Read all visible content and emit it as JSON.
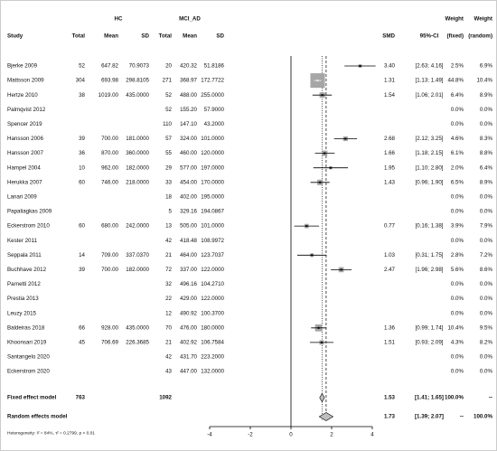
{
  "chart_data": {
    "type": "forest",
    "header": {
      "group1": "HC",
      "group2": "MCI_AD",
      "weight1": "Weight",
      "weight2": "Weight",
      "columns": [
        "Study",
        "Total",
        "Mean",
        "SD",
        "Total",
        "Mean",
        "SD",
        "SMD",
        "95%-CI",
        "(fixed)",
        "(random)"
      ]
    },
    "xlim": [
      -4,
      4
    ],
    "xticks": [
      -4,
      -2,
      0,
      2,
      4
    ],
    "box_color": "#a6a6a6",
    "diamond_color": "#bfbfbf",
    "rows": [
      {
        "study": "Bjerke 2009",
        "hc": [
          "52",
          "647.82",
          "70.9073"
        ],
        "mci": [
          "20",
          "420.32",
          "51.8186"
        ],
        "smd": {
          "value": 3.4,
          "label": "3.40"
        },
        "ci": {
          "value": [
            2.63,
            4.16
          ],
          "label": "[2.63; 4.16]"
        },
        "w_fixed": {
          "value": 2.5,
          "label": "2.5%"
        },
        "w_random": "6.9%"
      },
      {
        "study": "Mattsson 2009",
        "hc": [
          "304",
          "693.98",
          "298.8105"
        ],
        "mci": [
          "271",
          "368.97",
          "172.7722"
        ],
        "smd": {
          "value": 1.31,
          "label": "1.31"
        },
        "ci": {
          "value": [
            1.13,
            1.49
          ],
          "label": "[1.13; 1.49]"
        },
        "w_fixed": {
          "value": 44.8,
          "label": "44.8%"
        },
        "w_random": "10.4%"
      },
      {
        "study": "Hertze 2010",
        "hc": [
          "38",
          "1019.00",
          "435.0000"
        ],
        "mci": [
          "52",
          "488.00",
          "255.0000"
        ],
        "smd": {
          "value": 1.54,
          "label": "1.54"
        },
        "ci": {
          "value": [
            1.06,
            2.01
          ],
          "label": "[1.06; 2.01]"
        },
        "w_fixed": {
          "value": 6.4,
          "label": "6.4%"
        },
        "w_random": "8.9%"
      },
      {
        "study": "Palmqvist 2012",
        "mci": [
          "52",
          "155.20",
          "57.9000"
        ],
        "w_fixed": {
          "value": 0,
          "label": "0.0%"
        },
        "w_random": "0.0%"
      },
      {
        "study": "Spencer 2019",
        "mci": [
          "110",
          "147.10",
          "43.2000"
        ],
        "w_fixed": {
          "value": 0,
          "label": "0.0%"
        },
        "w_random": "0.0%"
      },
      {
        "study": "Hansson 2006",
        "hc": [
          "39",
          "700.00",
          "181.0000"
        ],
        "mci": [
          "57",
          "324.00",
          "101.0000"
        ],
        "smd": {
          "value": 2.68,
          "label": "2.68"
        },
        "ci": {
          "value": [
            2.12,
            3.25
          ],
          "label": "[2.12; 3.25]"
        },
        "w_fixed": {
          "value": 4.6,
          "label": "4.6%"
        },
        "w_random": "8.3%"
      },
      {
        "study": "Hansson 2007",
        "hc": [
          "36",
          "870.00",
          "360.0000"
        ],
        "mci": [
          "55",
          "460.00",
          "120.0000"
        ],
        "smd": {
          "value": 1.66,
          "label": "1.66"
        },
        "ci": {
          "value": [
            1.18,
            2.15
          ],
          "label": "[1.18; 2.15]"
        },
        "w_fixed": {
          "value": 6.1,
          "label": "6.1%"
        },
        "w_random": "8.8%"
      },
      {
        "study": "Hampel 2004",
        "hc": [
          "10",
          "962.00",
          "182.0000"
        ],
        "mci": [
          "29",
          "577.00",
          "197.0000"
        ],
        "smd": {
          "value": 1.95,
          "label": "1.95"
        },
        "ci": {
          "value": [
            1.1,
            2.8
          ],
          "label": "[1.10; 2.80]"
        },
        "w_fixed": {
          "value": 2,
          "label": "2.0%"
        },
        "w_random": "6.4%"
      },
      {
        "study": "Herukka 2007",
        "hc": [
          "60",
          "746.00",
          "218.0000"
        ],
        "mci": [
          "33",
          "454.00",
          "170.0000"
        ],
        "smd": {
          "value": 1.43,
          "label": "1.43"
        },
        "ci": {
          "value": [
            0.96,
            1.9
          ],
          "label": "[0.96; 1.90]"
        },
        "w_fixed": {
          "value": 6.5,
          "label": "6.5%"
        },
        "w_random": "8.9%"
      },
      {
        "study": "Lanari 2009",
        "mci": [
          "18",
          "402.00",
          "195.0000"
        ],
        "w_fixed": {
          "value": 0,
          "label": "0.0%"
        },
        "w_random": "0.0%"
      },
      {
        "study": "Papaliagkas 2009",
        "mci": [
          "5",
          "329.16",
          "194.0867"
        ],
        "w_fixed": {
          "value": 0,
          "label": "0.0%"
        },
        "w_random": "0.0%"
      },
      {
        "study": "Eckerstrom 2010",
        "hc": [
          "60",
          "680.00",
          "242.0000"
        ],
        "mci": [
          "13",
          "505.00",
          "101.0000"
        ],
        "smd": {
          "value": 0.77,
          "label": "0.77"
        },
        "ci": {
          "value": [
            0.16,
            1.38
          ],
          "label": "[0.16; 1.38]"
        },
        "w_fixed": {
          "value": 3.9,
          "label": "3.9%"
        },
        "w_random": "7.9%"
      },
      {
        "study": "Kester 2011",
        "mci": [
          "42",
          "418.48",
          "108.9972"
        ],
        "w_fixed": {
          "value": 0,
          "label": "0.0%"
        },
        "w_random": "0.0%"
      },
      {
        "study": "Seppala 2011",
        "hc": [
          "14",
          "709.00",
          "337.0370"
        ],
        "mci": [
          "21",
          "464.00",
          "123.7037"
        ],
        "smd": {
          "value": 1.03,
          "label": "1.03"
        },
        "ci": {
          "value": [
            0.31,
            1.75
          ],
          "label": "[0.31; 1.75]"
        },
        "w_fixed": {
          "value": 2.8,
          "label": "2.8%"
        },
        "w_random": "7.2%"
      },
      {
        "study": "Buchhave 2012",
        "hc": [
          "39",
          "700.00",
          "182.0000"
        ],
        "mci": [
          "72",
          "337.00",
          "122.0000"
        ],
        "smd": {
          "value": 2.47,
          "label": "2.47"
        },
        "ci": {
          "value": [
            1.96,
            2.98
          ],
          "label": "[1.96; 2.98]"
        },
        "w_fixed": {
          "value": 5.6,
          "label": "5.6%"
        },
        "w_random": "8.6%"
      },
      {
        "study": "Parnetti 2012",
        "mci": [
          "32",
          "496.16",
          "104.2710"
        ],
        "w_fixed": {
          "value": 0,
          "label": "0.0%"
        },
        "w_random": "0.0%"
      },
      {
        "study": "Prestia 2013",
        "mci": [
          "22",
          "429.00",
          "122.0000"
        ],
        "w_fixed": {
          "value": 0,
          "label": "0.0%"
        },
        "w_random": "0.0%"
      },
      {
        "study": "Leuzy 2015",
        "mci": [
          "12",
          "490.92",
          "100.3700"
        ],
        "w_fixed": {
          "value": 0,
          "label": "0.0%"
        },
        "w_random": "0.0%"
      },
      {
        "study": "Baldeiras 2018",
        "hc": [
          "66",
          "928.00",
          "435.0000"
        ],
        "mci": [
          "70",
          "476.00",
          "180.0000"
        ],
        "smd": {
          "value": 1.36,
          "label": "1.36"
        },
        "ci": {
          "value": [
            0.99,
            1.74
          ],
          "label": "[0.99; 1.74]"
        },
        "w_fixed": {
          "value": 10.4,
          "label": "10.4%"
        },
        "w_random": "9.5%"
      },
      {
        "study": "Khoonsari 2019",
        "hc": [
          "45",
          "706.69",
          "226.3685"
        ],
        "mci": [
          "21",
          "402.92",
          "106.7584"
        ],
        "smd": {
          "value": 1.51,
          "label": "1.51"
        },
        "ci": {
          "value": [
            0.93,
            2.09
          ],
          "label": "[0.93; 2.09]"
        },
        "w_fixed": {
          "value": 4.3,
          "label": "4.3%"
        },
        "w_random": "8.2%"
      },
      {
        "study": "Santangelo 2020",
        "mci": [
          "42",
          "431.70",
          "223.2000"
        ],
        "w_fixed": {
          "value": 0,
          "label": "0.0%"
        },
        "w_random": "0.0%"
      },
      {
        "study": "Eckerstrom 2020",
        "mci": [
          "43",
          "447.00",
          "132.0000"
        ],
        "w_fixed": {
          "value": 0,
          "label": "0.0%"
        },
        "w_random": "0.0%"
      }
    ],
    "summary": [
      {
        "study": "Fixed effect model",
        "hc_total": "763",
        "mci_total": "1092",
        "smd": {
          "value": 1.53,
          "label": "1.53"
        },
        "ci": {
          "value": [
            1.41,
            1.65
          ],
          "label": "[1.41; 1.65]"
        },
        "w_fixed": "100.0%",
        "w_random": "--"
      },
      {
        "study": "Random effects model",
        "smd": {
          "value": 1.73,
          "label": "1.73"
        },
        "ci": {
          "value": [
            1.39,
            2.07
          ],
          "label": "[1.39; 2.07]"
        },
        "w_fixed": "--",
        "w_random": "100.0%"
      }
    ],
    "heterogeneity": "Heterogeneity: I² = 84%, τ² = 0.2799, p < 0.01"
  }
}
